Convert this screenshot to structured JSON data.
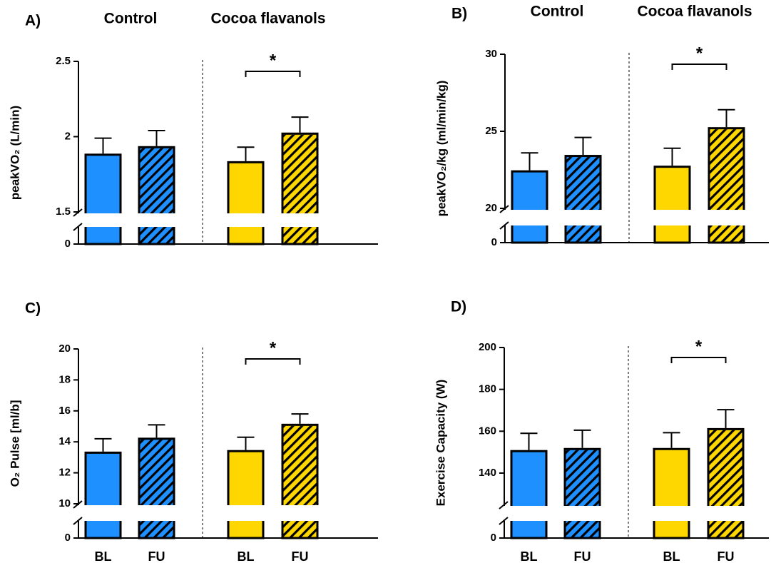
{
  "chart_data": [
    {
      "type": "bar",
      "panel_label": "A)",
      "group_titles": [
        "Control",
        "Cocoa flavanols"
      ],
      "ylabel": "peakVO₂ (L/min)",
      "values": [
        1.88,
        1.93,
        1.83,
        2.02
      ],
      "errors": [
        0.11,
        0.11,
        0.1,
        0.11
      ],
      "colors": [
        "#1e90ff",
        "#1e90ff",
        "#ffd700",
        "#ffd700"
      ],
      "hatched": [
        false,
        true,
        false,
        true
      ],
      "ylim": [
        0,
        2.5
      ],
      "ybreak": [
        0,
        1.5
      ],
      "yticks": [
        0,
        1.5,
        2,
        2.5
      ],
      "annotation": {
        "text": "*",
        "from": 2,
        "to": 3
      }
    },
    {
      "type": "bar",
      "panel_label": "B)",
      "group_titles": [
        "Control",
        "Cocoa flavanols"
      ],
      "ylabel": "peakVO₂/kg (ml/min/kg)",
      "values": [
        22.4,
        23.4,
        22.7,
        25.2
      ],
      "errors": [
        1.2,
        1.2,
        1.2,
        1.2
      ],
      "colors": [
        "#1e90ff",
        "#1e90ff",
        "#ffd700",
        "#ffd700"
      ],
      "hatched": [
        false,
        true,
        false,
        true
      ],
      "ylim": [
        0,
        30
      ],
      "ybreak": [
        0,
        20
      ],
      "yticks": [
        0,
        20,
        25,
        30
      ],
      "annotation": {
        "text": "*",
        "from": 2,
        "to": 3
      }
    },
    {
      "type": "bar",
      "panel_label": "C)",
      "ylabel": "O₂ Pulse [ml/b]",
      "categories": [
        "BL",
        "FU",
        "BL",
        "FU"
      ],
      "values": [
        13.3,
        14.2,
        13.4,
        15.1
      ],
      "errors": [
        0.9,
        0.9,
        0.9,
        0.7
      ],
      "colors": [
        "#1e90ff",
        "#1e90ff",
        "#ffd700",
        "#ffd700"
      ],
      "hatched": [
        false,
        true,
        false,
        true
      ],
      "ylim": [
        0,
        20
      ],
      "ybreak": [
        0,
        10
      ],
      "yticks": [
        0,
        10,
        12,
        14,
        16,
        18,
        20
      ],
      "annotation": {
        "text": "*",
        "from": 2,
        "to": 3
      }
    },
    {
      "type": "bar",
      "panel_label": "D)",
      "ylabel": "Exercise Capacity (W)",
      "categories": [
        "BL",
        "FU",
        "BL",
        "FU"
      ],
      "values": [
        150.5,
        151.5,
        151.5,
        161
      ],
      "errors": [
        8.5,
        9,
        7.8,
        9.3
      ],
      "colors": [
        "#1e90ff",
        "#1e90ff",
        "#ffd700",
        "#ffd700"
      ],
      "hatched": [
        false,
        true,
        false,
        true
      ],
      "ylim": [
        0,
        200
      ],
      "ybreak": [
        0,
        125
      ],
      "yticks": [
        0,
        140,
        160,
        180,
        200
      ],
      "annotation": {
        "text": "*",
        "from": 2,
        "to": 3
      }
    }
  ]
}
